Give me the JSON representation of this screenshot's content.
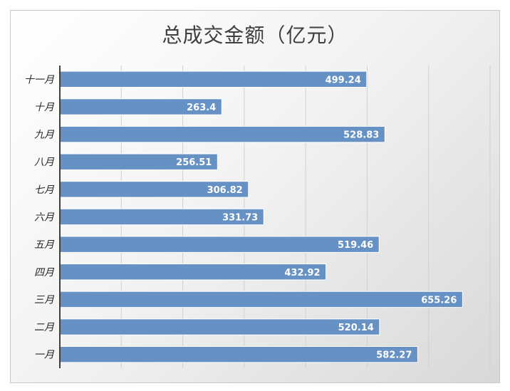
{
  "chart_data": {
    "type": "bar",
    "orientation": "horizontal",
    "title": "总成交金额（亿元）",
    "categories": [
      "一月",
      "二月",
      "三月",
      "四月",
      "五月",
      "六月",
      "七月",
      "八月",
      "九月",
      "十月",
      "十一月"
    ],
    "values": [
      582.27,
      520.14,
      655.26,
      432.92,
      519.46,
      331.73,
      306.82,
      256.51,
      528.83,
      263.4,
      499.24
    ],
    "value_labels": [
      "582.27",
      "520.14",
      "655.26",
      "432.92",
      "519.46",
      "331.73",
      "306.82",
      "256.51",
      "528.83",
      "263.4",
      "499.24"
    ],
    "xlabel": "",
    "ylabel": "",
    "xlim": [
      0,
      700
    ],
    "grid_step": 100,
    "grid": true,
    "legend": "none",
    "bar_color": "#6591c5",
    "bar_border_color": "#ffffff"
  }
}
